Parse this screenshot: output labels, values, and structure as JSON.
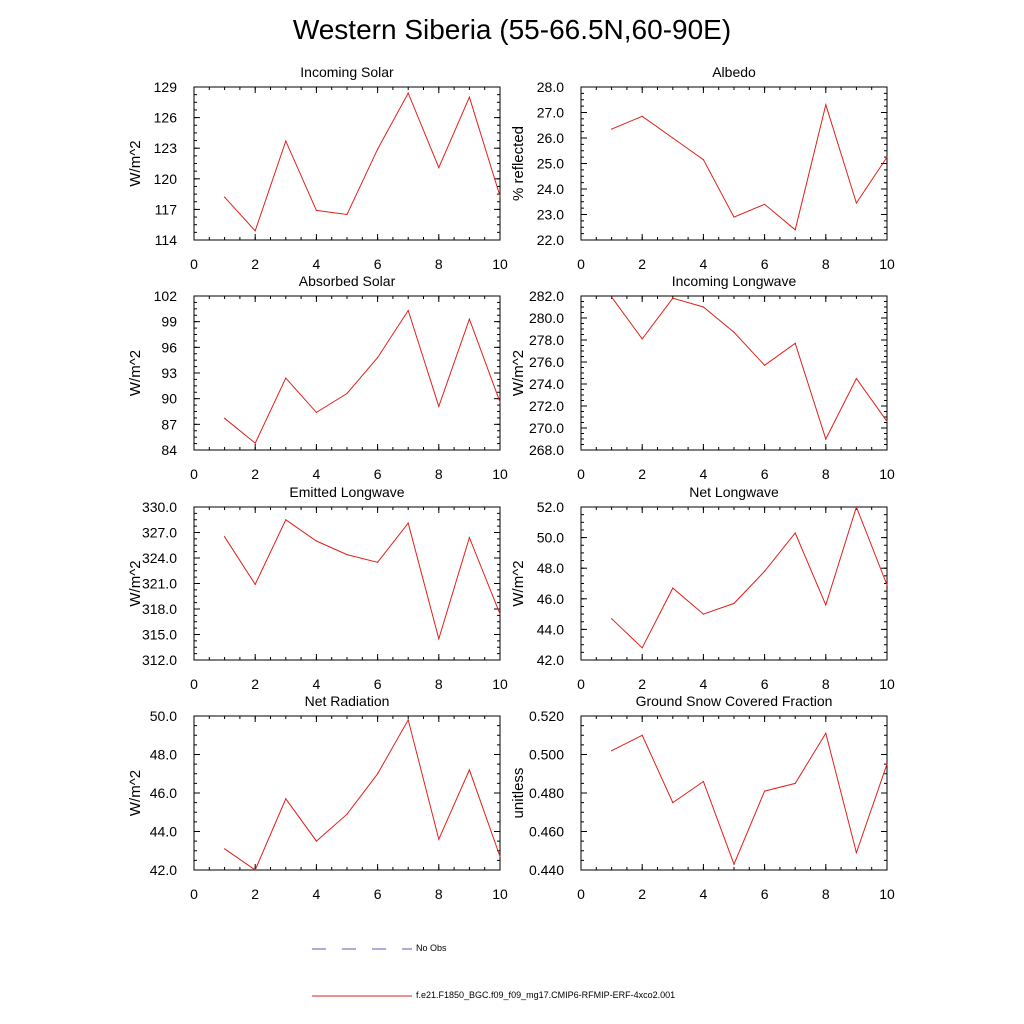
{
  "figure": {
    "title": "Western Siberia (55-66.5N,60-90E)",
    "legend": [
      {
        "label": "No Obs",
        "color": "#5a5ab4",
        "dashed": true
      },
      {
        "label": "f.e21.F1850_BGC.f09_f09_mg17.CMIP6-RFMIP-ERF-4xco2.001",
        "color": "#e0201b",
        "dashed": false
      }
    ]
  },
  "chart_data": [
    {
      "type": "line",
      "title": "Incoming Solar",
      "ylabel": "W/m^2",
      "xlim": [
        0,
        10
      ],
      "xticks": [
        0,
        2,
        4,
        6,
        8,
        10
      ],
      "xtick_labels": [
        "0",
        "2",
        "4",
        "6",
        "8",
        "10"
      ],
      "ylim": [
        114,
        129
      ],
      "yticks": [
        114,
        117,
        120,
        123,
        126,
        129
      ],
      "ytick_labels": [
        "114",
        "117",
        "120",
        "123",
        "126",
        "129"
      ],
      "series": [
        {
          "color": "#e0201b",
          "x": [
            1,
            2,
            3,
            4,
            5,
            6,
            7,
            8,
            9,
            10
          ],
          "y": [
            118.2,
            114.9,
            123.7,
            116.9,
            116.5,
            122.9,
            128.4,
            121.1,
            128.0,
            118.3
          ]
        }
      ]
    },
    {
      "type": "line",
      "title": "Albedo",
      "ylabel": "% reflected",
      "xlim": [
        0,
        10
      ],
      "xticks": [
        0,
        2,
        4,
        6,
        8,
        10
      ],
      "xtick_labels": [
        "0",
        "2",
        "4",
        "6",
        "8",
        "10"
      ],
      "ylim": [
        22,
        28
      ],
      "yticks": [
        22,
        23,
        24,
        25,
        26,
        27,
        28
      ],
      "ytick_labels": [
        "22.0",
        "23.0",
        "24.0",
        "25.0",
        "26.0",
        "27.0",
        "28.0"
      ],
      "series": [
        {
          "color": "#e0201b",
          "x": [
            1,
            2,
            3,
            4,
            5,
            6,
            7,
            8,
            9,
            10
          ],
          "y": [
            26.35,
            26.85,
            26.0,
            25.15,
            22.9,
            23.4,
            22.4,
            27.3,
            23.45,
            25.25
          ]
        }
      ]
    },
    {
      "type": "line",
      "title": "Absorbed Solar",
      "ylabel": "W/m^2",
      "xlim": [
        0,
        10
      ],
      "xticks": [
        0,
        2,
        4,
        6,
        8,
        10
      ],
      "xtick_labels": [
        "0",
        "2",
        "4",
        "6",
        "8",
        "10"
      ],
      "ylim": [
        84,
        102
      ],
      "yticks": [
        84,
        87,
        90,
        93,
        96,
        99,
        102
      ],
      "ytick_labels": [
        "84",
        "87",
        "90",
        "93",
        "96",
        "99",
        "102"
      ],
      "series": [
        {
          "color": "#e0201b",
          "x": [
            1,
            2,
            3,
            4,
            5,
            6,
            7,
            8,
            9,
            10
          ],
          "y": [
            87.7,
            84.8,
            92.4,
            88.4,
            90.6,
            94.8,
            100.3,
            89.1,
            99.3,
            89.6
          ]
        }
      ]
    },
    {
      "type": "line",
      "title": "Incoming Longwave",
      "ylabel": "W/m^2",
      "xlim": [
        0,
        10
      ],
      "xticks": [
        0,
        2,
        4,
        6,
        8,
        10
      ],
      "xtick_labels": [
        "0",
        "2",
        "4",
        "6",
        "8",
        "10"
      ],
      "ylim": [
        268,
        282
      ],
      "yticks": [
        268,
        270,
        272,
        274,
        276,
        278,
        280,
        282
      ],
      "ytick_labels": [
        "268.0",
        "270.0",
        "272.0",
        "274.0",
        "276.0",
        "278.0",
        "280.0",
        "282.0"
      ],
      "series": [
        {
          "color": "#e0201b",
          "x": [
            1,
            2,
            3,
            4,
            5,
            6,
            7,
            8,
            9,
            10
          ],
          "y": [
            281.9,
            278.1,
            281.8,
            281.0,
            278.7,
            275.7,
            277.7,
            269.0,
            274.5,
            270.6
          ]
        }
      ]
    },
    {
      "type": "line",
      "title": "Emitted Longwave",
      "ylabel": "W/m^2",
      "xlim": [
        0,
        10
      ],
      "xticks": [
        0,
        2,
        4,
        6,
        8,
        10
      ],
      "xtick_labels": [
        "0",
        "2",
        "4",
        "6",
        "8",
        "10"
      ],
      "ylim": [
        312,
        330
      ],
      "yticks": [
        312,
        315,
        318,
        321,
        324,
        327,
        330
      ],
      "ytick_labels": [
        "312.0",
        "315.0",
        "318.0",
        "321.0",
        "324.0",
        "327.0",
        "330.0"
      ],
      "series": [
        {
          "color": "#e0201b",
          "x": [
            1,
            2,
            3,
            4,
            5,
            6,
            7,
            8,
            9,
            10
          ],
          "y": [
            326.5,
            320.9,
            328.5,
            326.0,
            324.4,
            323.5,
            328.1,
            314.5,
            326.4,
            317.4
          ]
        }
      ]
    },
    {
      "type": "line",
      "title": "Net Longwave",
      "ylabel": "W/m^2",
      "xlim": [
        0,
        10
      ],
      "xticks": [
        0,
        2,
        4,
        6,
        8,
        10
      ],
      "xtick_labels": [
        "0",
        "2",
        "4",
        "6",
        "8",
        "10"
      ],
      "ylim": [
        42,
        52
      ],
      "yticks": [
        42,
        44,
        46,
        48,
        50,
        52
      ],
      "ytick_labels": [
        "42.0",
        "44.0",
        "46.0",
        "48.0",
        "50.0",
        "52.0"
      ],
      "series": [
        {
          "color": "#e0201b",
          "x": [
            1,
            2,
            3,
            4,
            5,
            6,
            7,
            8,
            9,
            10
          ],
          "y": [
            44.7,
            42.8,
            46.7,
            45.0,
            45.7,
            47.8,
            50.3,
            45.6,
            52.0,
            46.9
          ]
        }
      ]
    },
    {
      "type": "line",
      "title": "Net Radiation",
      "ylabel": "W/m^2",
      "xlim": [
        0,
        10
      ],
      "xticks": [
        0,
        2,
        4,
        6,
        8,
        10
      ],
      "xtick_labels": [
        "0",
        "2",
        "4",
        "6",
        "8",
        "10"
      ],
      "ylim": [
        42,
        50
      ],
      "yticks": [
        42,
        44,
        46,
        48,
        50
      ],
      "ytick_labels": [
        "42.0",
        "44.0",
        "46.0",
        "48.0",
        "50.0"
      ],
      "series": [
        {
          "color": "#e0201b",
          "x": [
            1,
            2,
            3,
            4,
            5,
            6,
            7,
            8,
            9,
            10
          ],
          "y": [
            43.1,
            42.0,
            45.7,
            43.5,
            44.9,
            47.0,
            49.8,
            43.6,
            47.2,
            42.7
          ]
        }
      ]
    },
    {
      "type": "line",
      "title": "Ground Snow Covered Fraction",
      "ylabel": "unitless",
      "xlim": [
        0,
        10
      ],
      "xticks": [
        0,
        2,
        4,
        6,
        8,
        10
      ],
      "xtick_labels": [
        "0",
        "2",
        "4",
        "6",
        "8",
        "10"
      ],
      "ylim": [
        0.44,
        0.52
      ],
      "yticks": [
        0.44,
        0.46,
        0.48,
        0.5,
        0.52
      ],
      "ytick_labels": [
        "0.440",
        "0.460",
        "0.480",
        "0.500",
        "0.520"
      ],
      "series": [
        {
          "color": "#e0201b",
          "x": [
            1,
            2,
            3,
            4,
            5,
            6,
            7,
            8,
            9,
            10
          ],
          "y": [
            0.502,
            0.51,
            0.475,
            0.486,
            0.443,
            0.481,
            0.485,
            0.511,
            0.449,
            0.495
          ]
        }
      ]
    }
  ]
}
